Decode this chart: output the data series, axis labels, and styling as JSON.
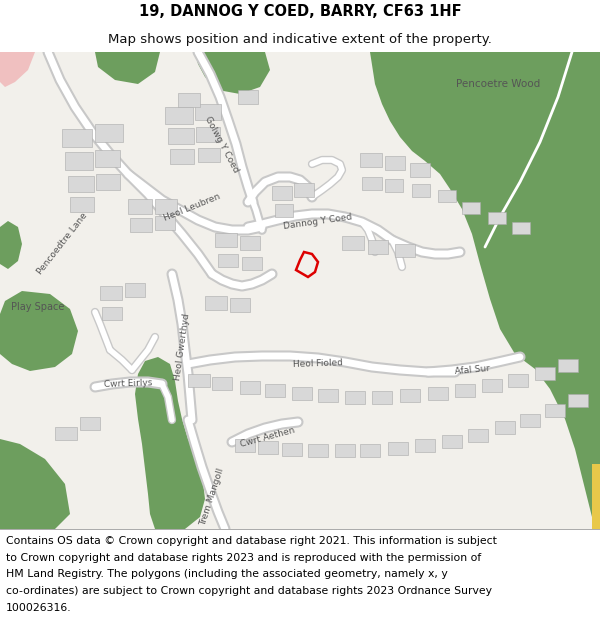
{
  "title_line1": "19, DANNOG Y COED, BARRY, CF63 1HF",
  "title_line2": "Map shows position and indicative extent of the property.",
  "footer_lines": [
    "Contains OS data © Crown copyright and database right 2021. This information is subject",
    "to Crown copyright and database rights 2023 and is reproduced with the permission of",
    "HM Land Registry. The polygons (including the associated geometry, namely x, y",
    "co-ordinates) are subject to Crown copyright and database rights 2023 Ordnance Survey",
    "100026316."
  ],
  "title_fontsize": 10.5,
  "subtitle_fontsize": 9.5,
  "footer_fontsize": 7.8,
  "bg_color": "#ffffff",
  "map_bg": "#f2f0eb",
  "green_dark": "#6d9e5e",
  "green_light": "#b8d4a8",
  "road_white": "#ffffff",
  "road_outline": "#c8c8c8",
  "building_fill": "#d8d8d8",
  "building_edge": "#aaaaaa",
  "highlight_red": "#dd0000",
  "pink_fill": "#f0c0c0",
  "yellow_fill": "#e8c84a",
  "text_color": "#555555",
  "label_fontsize": 6.5
}
